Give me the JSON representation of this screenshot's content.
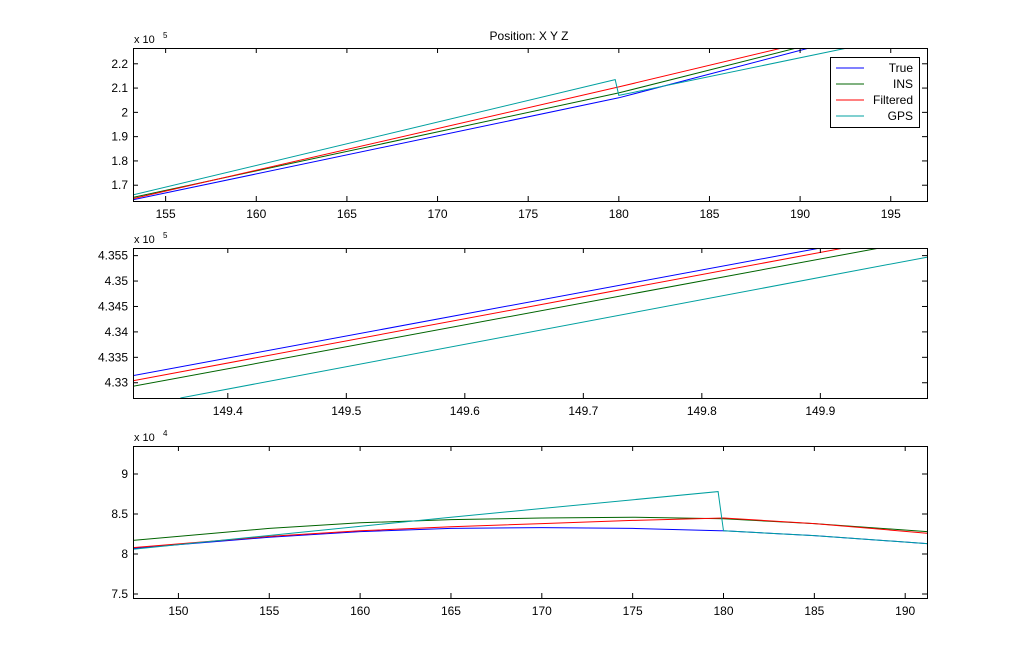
{
  "figure_title": "Position: X Y Z",
  "legend": [
    "True",
    "INS",
    "Filtered",
    "GPS"
  ],
  "colors": {
    "True": "#0000ff",
    "INS": "#006400",
    "Filtered": "#ff0000",
    "GPS": "#00a0a0"
  },
  "chart_data": [
    {
      "type": "line",
      "title": "Position: X Y Z",
      "xlabel": "",
      "ylabel": "",
      "xlim": [
        153.2,
        197
      ],
      "ylim": [
        163500,
        226500
      ],
      "xticks": [
        155,
        160,
        165,
        170,
        175,
        180,
        185,
        190,
        195
      ],
      "yticks": [
        170000,
        180000,
        190000,
        200000,
        210000,
        220000
      ],
      "ytick_labels": [
        "1.7",
        "1.8",
        "1.9",
        "2",
        "2.1",
        "2.2"
      ],
      "exponent_label": "x 10",
      "exponent_power": "5",
      "legend_position": "top-right",
      "grid": false,
      "series": [
        {
          "name": "True",
          "x": [
            153.2,
            180,
            190.5
          ],
          "y": [
            164000,
            206000,
            226500
          ]
        },
        {
          "name": "INS",
          "x": [
            153.2,
            180,
            189.8
          ],
          "y": [
            165000,
            208000,
            226500
          ]
        },
        {
          "name": "Filtered",
          "x": [
            153.2,
            180,
            189.0
          ],
          "y": [
            164500,
            210500,
            226500
          ]
        },
        {
          "name": "GPS",
          "x": [
            153.2,
            179.8,
            180.0,
            192.6
          ],
          "y": [
            166000,
            213500,
            207000,
            226500
          ]
        }
      ]
    },
    {
      "type": "line",
      "xlim": [
        149.32,
        149.99
      ],
      "ylim": [
        432700,
        435650
      ],
      "xticks": [
        149.4,
        149.5,
        149.6,
        149.7,
        149.8,
        149.9
      ],
      "xtick_labels": [
        "149.4",
        "149.5",
        "149.6",
        "149.7",
        "149.8",
        "149.9"
      ],
      "yticks": [
        433000,
        433500,
        434000,
        434500,
        435000,
        435500
      ],
      "ytick_labels": [
        "4.33",
        "4.335",
        "4.34",
        "4.345",
        "4.35",
        "4.355"
      ],
      "exponent_label": "x 10",
      "exponent_power": "5",
      "grid": false,
      "series": [
        {
          "name": "True",
          "x": [
            149.32,
            149.9
          ],
          "y": [
            433140,
            435650
          ]
        },
        {
          "name": "INS",
          "x": [
            149.32,
            149.95
          ],
          "y": [
            432930,
            435650
          ]
        },
        {
          "name": "Filtered",
          "x": [
            149.32,
            149.92
          ],
          "y": [
            433040,
            435650
          ]
        },
        {
          "name": "GPS",
          "x": [
            149.36,
            149.99
          ],
          "y": [
            432700,
            435470
          ]
        }
      ]
    },
    {
      "type": "line",
      "xlim": [
        147.5,
        191.2
      ],
      "ylim": [
        74500,
        93500
      ],
      "xticks": [
        150,
        155,
        160,
        165,
        170,
        175,
        180,
        185,
        190
      ],
      "yticks": [
        75000,
        80000,
        85000,
        90000
      ],
      "ytick_labels": [
        "7.5",
        "8",
        "8.5",
        "9"
      ],
      "exponent_label": "x 10",
      "exponent_power": "4",
      "grid": false,
      "series": [
        {
          "name": "True",
          "x": [
            147.5,
            155,
            160,
            165,
            170,
            175,
            179.8,
            180,
            185,
            191.2
          ],
          "y": [
            80700,
            82100,
            82800,
            83200,
            83300,
            83200,
            82900,
            82900,
            82300,
            81300
          ]
        },
        {
          "name": "INS",
          "x": [
            147.5,
            155,
            160,
            165,
            170,
            175,
            180,
            185,
            191.2
          ],
          "y": [
            81700,
            83200,
            83900,
            84300,
            84500,
            84600,
            84400,
            83800,
            82800
          ]
        },
        {
          "name": "Filtered",
          "x": [
            147.5,
            155,
            160,
            165,
            170,
            175,
            180,
            185,
            191.2
          ],
          "y": [
            80800,
            82200,
            82900,
            83400,
            83800,
            84200,
            84500,
            83800,
            82600
          ]
        },
        {
          "name": "GPS",
          "x": [
            147.5,
            165,
            179.7,
            180.0,
            185,
            191.2
          ],
          "y": [
            80600,
            84600,
            87800,
            82900,
            82300,
            81300
          ]
        }
      ]
    }
  ]
}
